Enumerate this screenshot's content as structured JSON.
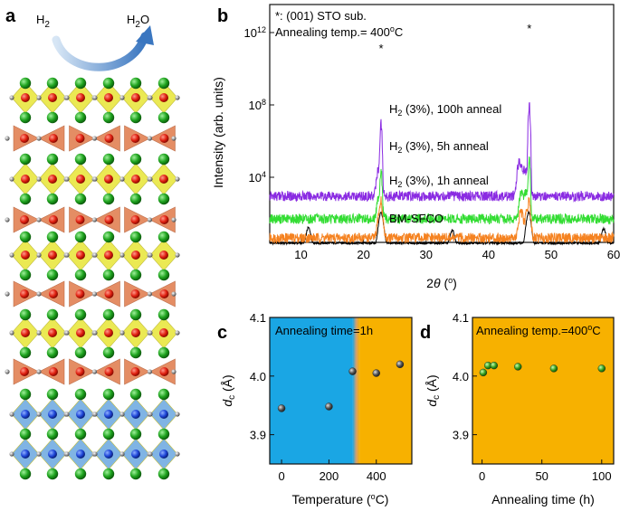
{
  "panel_labels": {
    "a": "a",
    "b": "b",
    "c": "c",
    "d": "d"
  },
  "panel_a": {
    "reactant": "H2",
    "product": "H2O"
  },
  "chart_data": [
    {
      "id": "b",
      "type": "line",
      "xlabel": "2θ (°)",
      "ylabel": "Intensity (arb. units)",
      "xlim": [
        5,
        60
      ],
      "xticks": [
        10,
        20,
        30,
        40,
        50,
        60
      ],
      "ytick_labels": [
        "10^12",
        "10^8",
        "10^4"
      ],
      "ylog": true,
      "annotation_lines": [
        "*: (001) STO sub.",
        "Annealing temp.= 400°C"
      ],
      "peak_markers": [
        {
          "x": 22.8,
          "label": "*"
        },
        {
          "x": 46.5,
          "label": "*"
        }
      ],
      "series": [
        {
          "name": "BM-SFCO",
          "color": "#000000",
          "peaks": [
            [
              11.2,
              6
            ],
            [
              22.8,
              40
            ],
            [
              34.2,
              4
            ],
            [
              46.4,
              40
            ],
            [
              58.4,
              5
            ]
          ],
          "sharp_peaks": [
            [
              22.8,
              12
            ],
            [
              46.5,
              12
            ]
          ],
          "baseline": 2.3
        },
        {
          "name": "H2 (3%), 1h anneal",
          "color": "#f58220",
          "peaks": [
            [
              22.7,
              40
            ],
            [
              45.2,
              25
            ],
            [
              46.3,
              45
            ]
          ],
          "sharp_peaks": [
            [
              22.8,
              80
            ],
            [
              46.5,
              100
            ]
          ],
          "baseline": 4.5
        },
        {
          "name": "H2 (3%), 5h anneal",
          "color": "#33dd33",
          "peaks": [
            [
              22.6,
              25
            ],
            [
              45.3,
              25
            ],
            [
              46.0,
              30
            ]
          ],
          "sharp_peaks": [
            [
              22.8,
              500
            ],
            [
              46.5,
              2000
            ]
          ],
          "baseline": 50
        },
        {
          "name": "H2 (3%), 100h anneal",
          "color": "#8a2be2",
          "peaks": [
            [
              22.5,
              35
            ],
            [
              45.0,
              80
            ],
            [
              45.8,
              30
            ]
          ],
          "sharp_peaks": [
            [
              22.8,
              10000
            ],
            [
              46.5,
              100000
            ]
          ],
          "baseline": 900
        }
      ]
    },
    {
      "id": "c",
      "type": "scatter",
      "xlabel": "Temperature (°C)",
      "ylabel": "dc (Å)",
      "xlim": [
        -50,
        550
      ],
      "xticks": [
        0,
        200,
        400
      ],
      "ylim": [
        3.85,
        4.1
      ],
      "yticks": [
        3.9,
        4.0,
        4.1
      ],
      "annotation": "Annealing time=1h",
      "regions": [
        {
          "from": -50,
          "to": 300,
          "color": "#1aa6e4"
        },
        {
          "from": 300,
          "to": 330,
          "color": "gradient"
        },
        {
          "from": 330,
          "to": 550,
          "color": "#f7b100"
        }
      ],
      "points": [
        [
          0,
          3.945
        ],
        [
          200,
          3.948
        ],
        [
          300,
          4.008
        ],
        [
          400,
          4.005
        ],
        [
          500,
          4.02
        ]
      ]
    },
    {
      "id": "d",
      "type": "scatter",
      "xlabel": "Annealing time (h)",
      "ylabel": "dc (Å)",
      "xlim": [
        -8,
        110
      ],
      "xticks": [
        0,
        50,
        100
      ],
      "ylim": [
        3.85,
        4.1
      ],
      "yticks": [
        3.9,
        4.0,
        4.1
      ],
      "annotation": "Annealing temp.=400°C",
      "background": "#f7b100",
      "points": [
        [
          1,
          4.006
        ],
        [
          5,
          4.018
        ],
        [
          10,
          4.018
        ],
        [
          30,
          4.016
        ],
        [
          60,
          4.013
        ],
        [
          100,
          4.013
        ]
      ]
    }
  ]
}
